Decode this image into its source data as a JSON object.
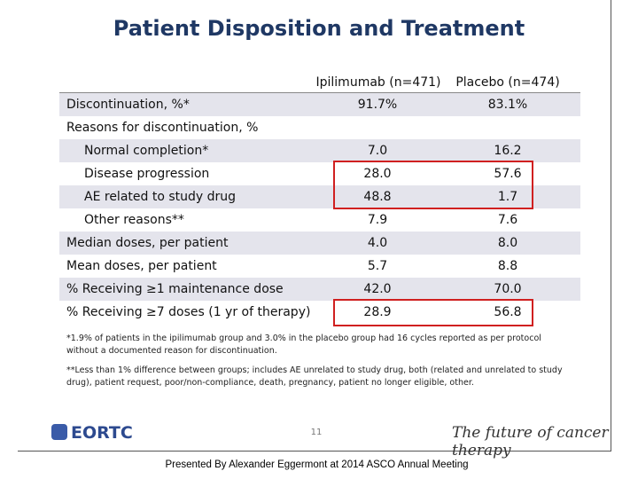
{
  "header": {
    "title": "Patient Disposition and Treatment"
  },
  "table": {
    "columns": [
      "Ipilimumab (n=471)",
      "Placebo (n=474)"
    ],
    "rows": [
      [
        "Discontinuation, %*",
        "91.7%",
        "83.1%"
      ],
      [
        "Reasons for discontinuation, %"
      ],
      [
        "Normal completion*",
        "7.0",
        "16.2"
      ],
      [
        "Disease progression",
        "28.0",
        "57.6"
      ],
      [
        "AE related to study drug",
        "48.8",
        "1.7"
      ],
      [
        "Other reasons**",
        "7.9",
        "7.6"
      ],
      [
        "Median doses, per patient",
        "4.0",
        "8.0"
      ],
      [
        "Mean doses, per patient",
        "5.7",
        "8.8"
      ],
      [
        "% Receiving ≥1 maintenance dose",
        "42.0",
        "70.0"
      ],
      [
        "% Receiving ≥7 doses (1 yr of therapy)",
        "28.9",
        "56.8"
      ]
    ]
  },
  "footnotes": [
    "*1.9% of patients in the ipilimumab group and 3.0% in the placebo group had 16 cycles reported as per protocol without a documented reason for discontinuation.",
    "**Less than 1% difference between groups; includes AE unrelated to study drug, both (related and unrelated to study drug), patient request, poor/non-compliance, death, pregnancy, patient no longer eligible,  other."
  ],
  "footer": {
    "logo": "EORTC",
    "page_number": "11",
    "tagline": "The future of cancer therapy"
  },
  "caption": "Presented By Alexander Eggermont at 2014 ASCO Annual Meeting"
}
